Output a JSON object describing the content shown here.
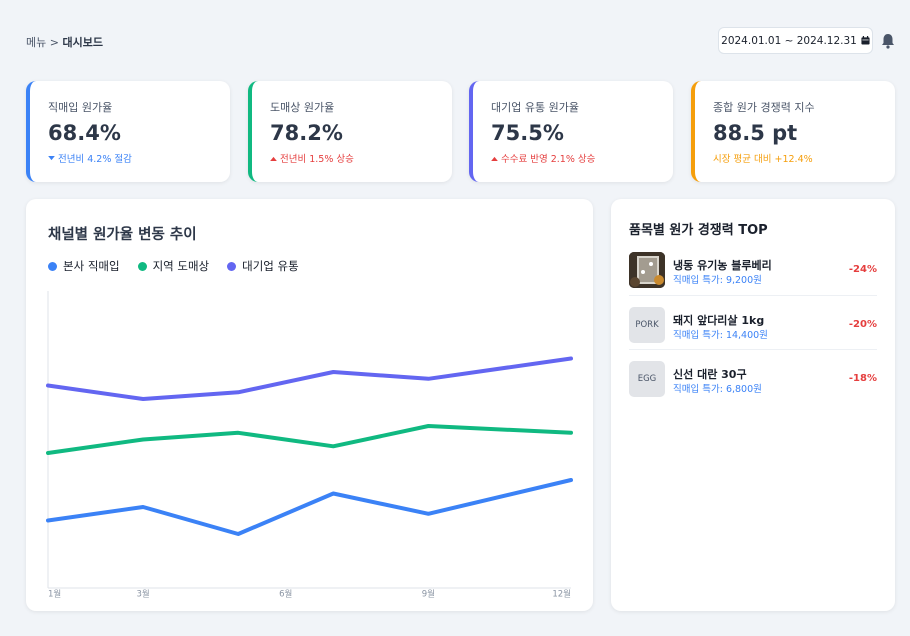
{
  "breadcrumb": {
    "root": "메뉴",
    "separator": ">",
    "current": "대시보드"
  },
  "date_range": {
    "label": "2024.01.01 ~ 2024.12.31",
    "icon": "calendar-icon"
  },
  "notification": {
    "icon": "bell-icon"
  },
  "colors": {
    "blue": "#3b82f6",
    "green": "#10b981",
    "purple": "#6366f1",
    "orange": "#f59e0b",
    "red": "#e53e3e"
  },
  "kpis": [
    {
      "label": "직매입 원가율",
      "value": "68.4%",
      "delta": "전년비 4.2% 절감",
      "direction": "down",
      "accent": "#3b82f6",
      "delta_color": "#3b82f6"
    },
    {
      "label": "도매상 원가율",
      "value": "78.2%",
      "delta": "전년비 1.5% 상승",
      "direction": "up",
      "accent": "#10b981",
      "delta_color": "#e53e3e"
    },
    {
      "label": "대기업 유통 원가율",
      "value": "75.5%",
      "delta": "수수료 반영 2.1% 상승",
      "direction": "up",
      "accent": "#6366f1",
      "delta_color": "#e53e3e"
    },
    {
      "label": "종합 원가 경쟁력 지수",
      "value": "88.5 pt",
      "delta": "시장 평균 대비 +12.4%",
      "direction": "none",
      "accent": "#f59e0b",
      "delta_color": "#f59e0b"
    }
  ],
  "chart": {
    "title": "채널별 원가율 변동 추이"
  },
  "chart_data": {
    "type": "line",
    "x": [
      1,
      2,
      3,
      4,
      5,
      6,
      7,
      8,
      9,
      10,
      11,
      12
    ],
    "xticks": [
      "1월",
      "3월",
      "6월",
      "9월",
      "12월"
    ],
    "xtick_positions": [
      1,
      3,
      6,
      9,
      12
    ],
    "series": [
      {
        "name": "본사 직매입",
        "color": "#3b82f6",
        "points": [
          [
            1,
            68
          ],
          [
            3,
            69
          ],
          [
            5,
            67
          ],
          [
            7,
            70
          ],
          [
            9,
            68.5
          ],
          [
            12,
            71
          ]
        ]
      },
      {
        "name": "지역 도매상",
        "color": "#10b981",
        "points": [
          [
            1,
            73
          ],
          [
            3,
            74
          ],
          [
            5,
            74.5
          ],
          [
            7,
            73.5
          ],
          [
            9,
            75
          ],
          [
            12,
            74.5
          ]
        ]
      },
      {
        "name": "대기업 유통",
        "color": "#6366f1",
        "points": [
          [
            1,
            78
          ],
          [
            3,
            77
          ],
          [
            5,
            77.5
          ],
          [
            7,
            79
          ],
          [
            9,
            78.5
          ],
          [
            12,
            80
          ]
        ]
      }
    ],
    "ylim": [
      63,
      85
    ],
    "grid": false,
    "legend": "top-left"
  },
  "top_products": {
    "title": "품목별 원가 경쟁력 TOP",
    "items": [
      {
        "name": "냉동 유기농 블루베리",
        "sub": "직매입 특가: 9,200원",
        "pct": "-24%",
        "thumb": ""
      },
      {
        "name": "돼지 앞다리살 1kg",
        "sub": "직매입 특가: 14,400원",
        "pct": "-20%",
        "thumb": "PORK"
      },
      {
        "name": "신선 대란 30구",
        "sub": "직매입 특가: 6,800원",
        "pct": "-18%",
        "thumb": "EGG"
      }
    ]
  }
}
